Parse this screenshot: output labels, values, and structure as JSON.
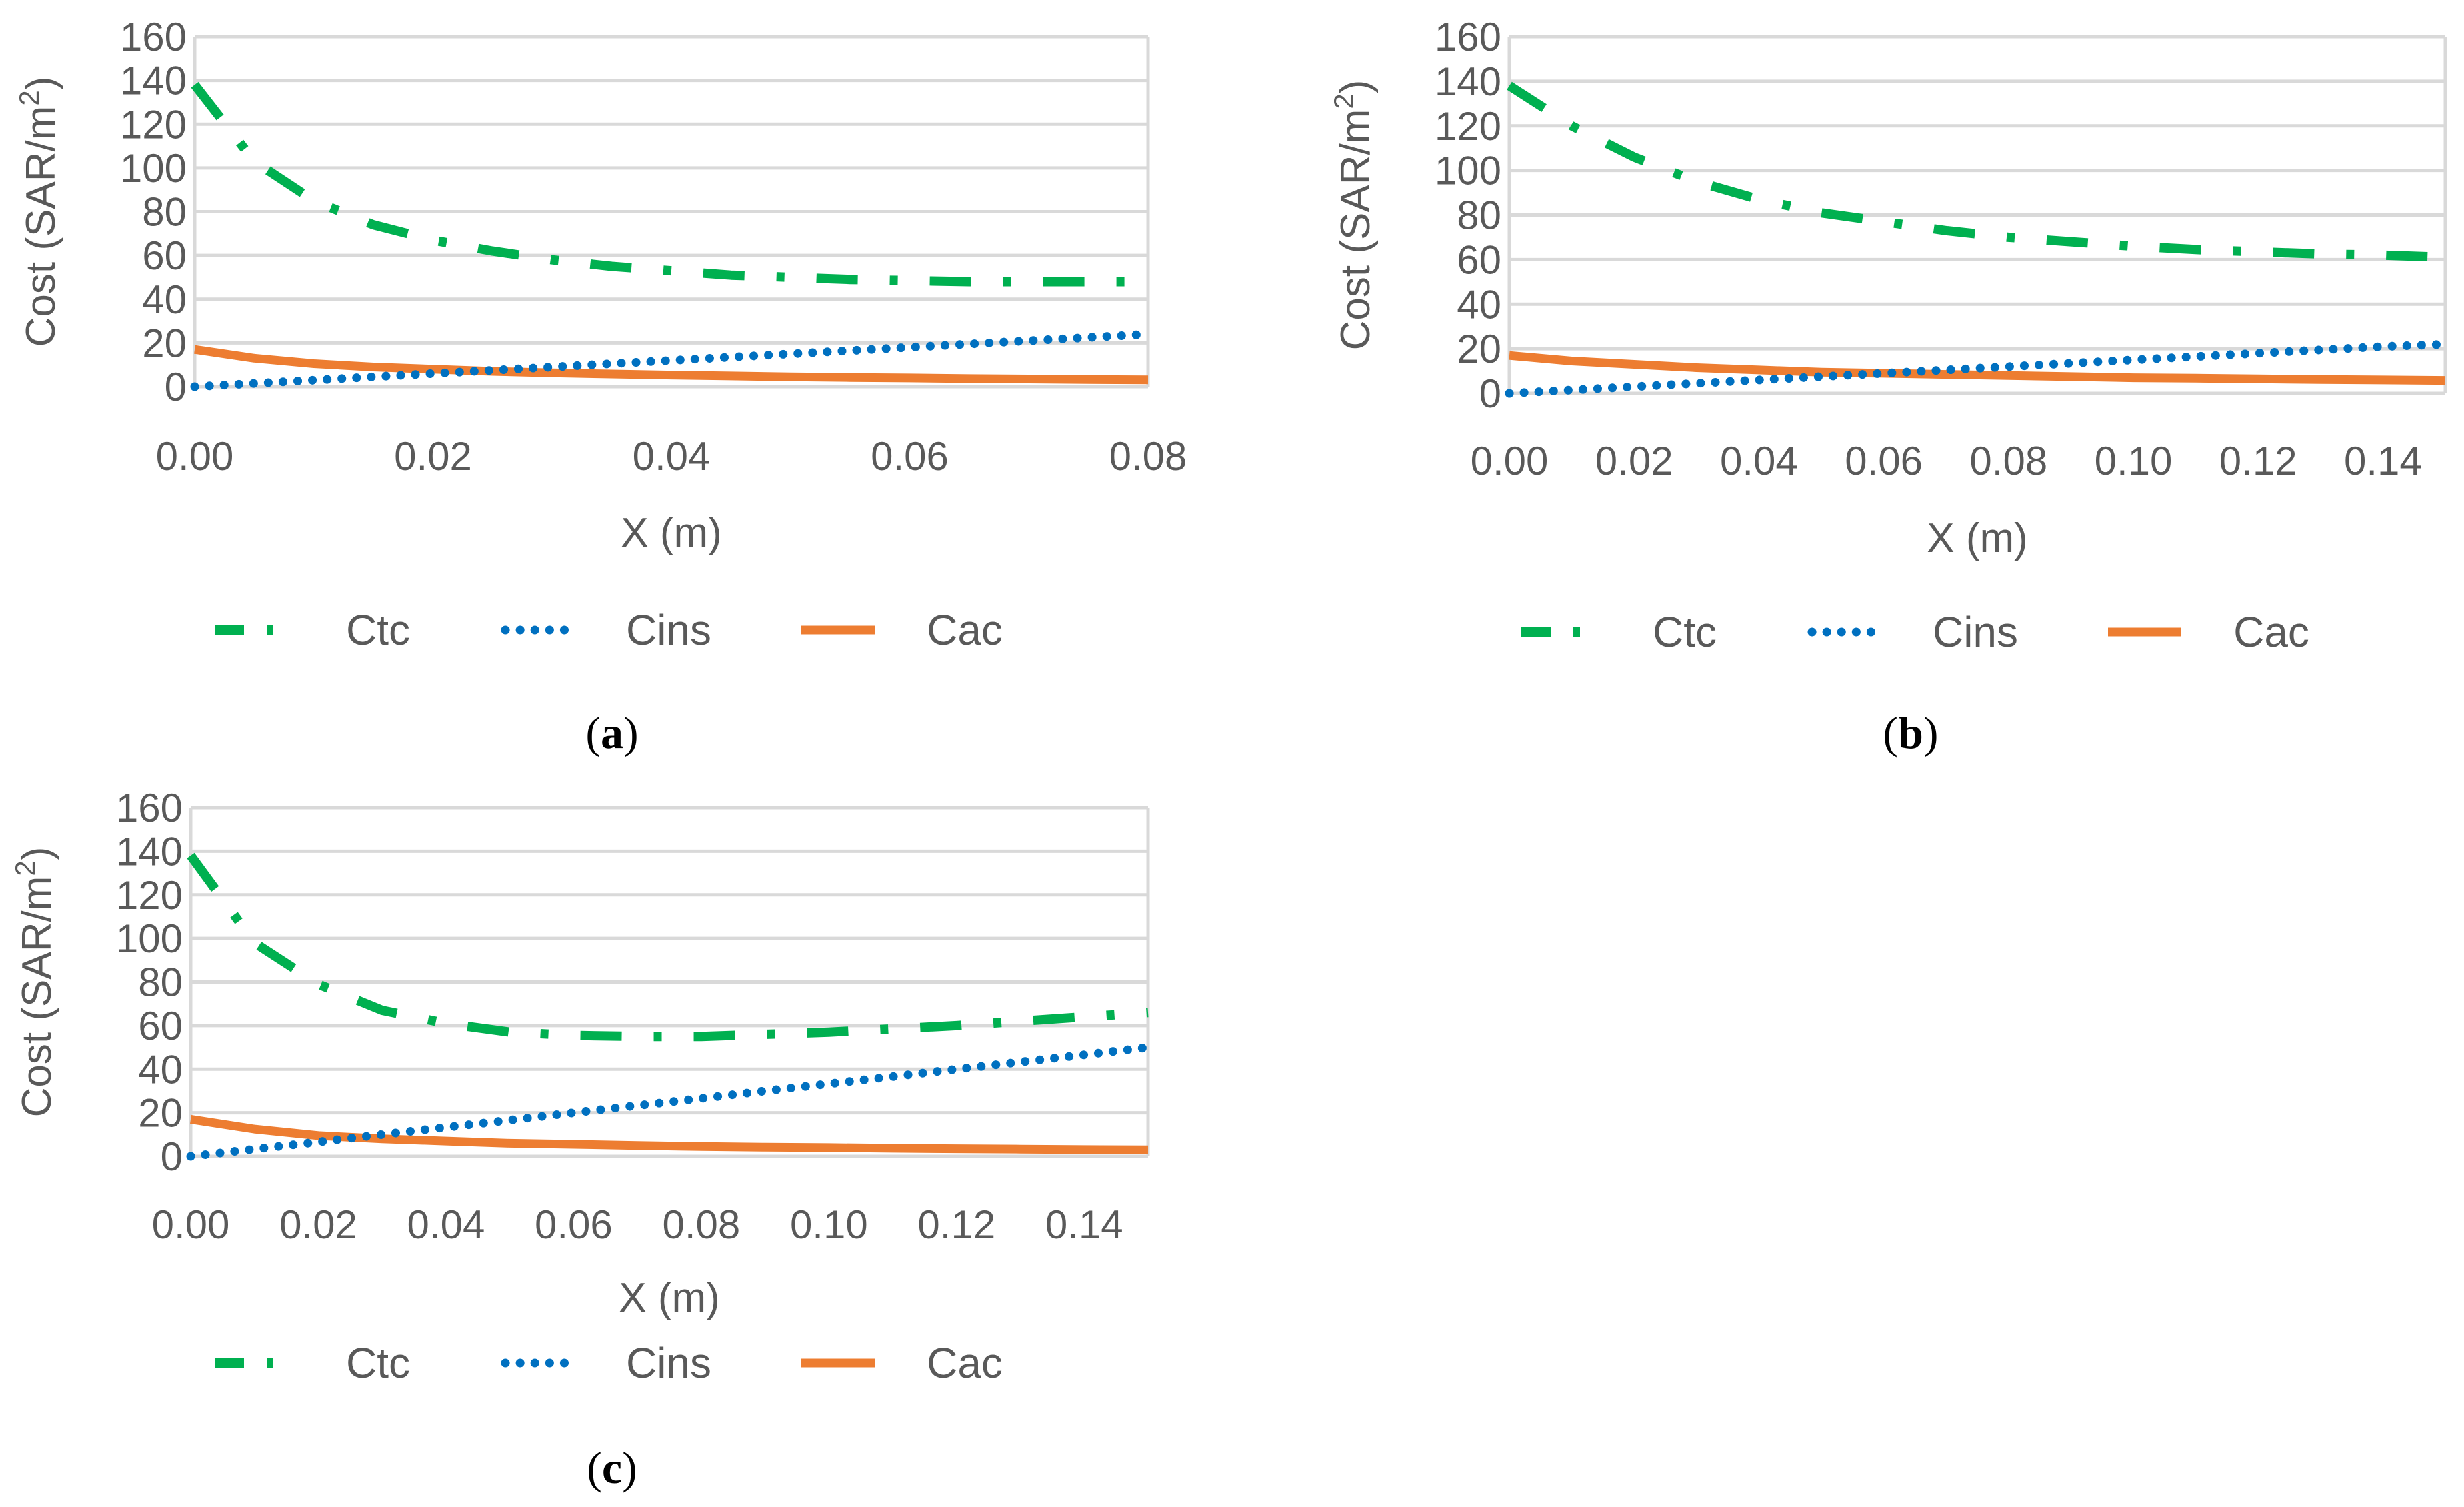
{
  "colors": {
    "ctc": "#00b050",
    "cins": "#0070c0",
    "cac": "#ed7d31",
    "grid": "#d9d9d9",
    "text": "#595959"
  },
  "chart_data": [
    {
      "panel": "(a)",
      "type": "line",
      "title": "",
      "xlabel": "X (m)",
      "ylabel_main": "Cost (SAR/m",
      "ylabel_sup": "2",
      "ylabel_end": ")",
      "xlim": [
        0,
        0.08
      ],
      "ylim": [
        0,
        160
      ],
      "xticks": [
        "0.00",
        "0.02",
        "0.04",
        "0.06",
        "0.08"
      ],
      "yticks": [
        "0",
        "20",
        "40",
        "60",
        "80",
        "100",
        "120",
        "140",
        "160"
      ],
      "legend": [
        "Ctc",
        "Cins",
        "Cac"
      ],
      "legend_position": "bottom",
      "x": [
        0,
        0.005,
        0.01,
        0.015,
        0.02,
        0.025,
        0.03,
        0.035,
        0.04,
        0.045,
        0.05,
        0.055,
        0.06,
        0.065,
        0.07,
        0.075,
        0.08
      ],
      "series": [
        {
          "name": "Ctc",
          "values": [
            138,
            103,
            85,
            74,
            67,
            62,
            58,
            55,
            53,
            51,
            50,
            49,
            48.5,
            48,
            48,
            48,
            48
          ]
        },
        {
          "name": "Cins",
          "values": [
            0,
            1.5,
            3,
            4.5,
            6,
            7.5,
            9,
            10.5,
            12,
            13.5,
            15,
            16.5,
            18,
            19.5,
            21,
            22.5,
            24
          ]
        },
        {
          "name": "Cac",
          "values": [
            17,
            13,
            10.5,
            9,
            8,
            7,
            6.3,
            5.8,
            5.3,
            4.9,
            4.5,
            4.2,
            4.0,
            3.7,
            3.5,
            3.3,
            3.1
          ]
        }
      ]
    },
    {
      "panel": "(b)",
      "type": "line",
      "title": "",
      "xlabel": "X (m)",
      "ylabel_main": "Cost  (SAR/m",
      "ylabel_sup": "2",
      "ylabel_end": ")",
      "xlim": [
        0,
        0.15
      ],
      "ylim": [
        0,
        160
      ],
      "xticks": [
        "0.00",
        "0.02",
        "0.04",
        "0.06",
        "0.08",
        "0.10",
        "0.12",
        "0.14"
      ],
      "yticks": [
        "0",
        "20",
        "40",
        "60",
        "80",
        "100",
        "120",
        "140",
        "160"
      ],
      "legend": [
        "Ctc",
        "Cins",
        "Cac"
      ],
      "legend_position": "bottom",
      "x": [
        0,
        0.01,
        0.02,
        0.03,
        0.04,
        0.05,
        0.06,
        0.07,
        0.08,
        0.09,
        0.1,
        0.11,
        0.12,
        0.13,
        0.14,
        0.15
      ],
      "series": [
        {
          "name": "Ctc",
          "values": [
            138,
            120,
            106,
            95,
            87,
            81,
            77,
            73,
            70,
            68,
            66,
            64.5,
            63.5,
            62.5,
            62,
            61
          ]
        },
        {
          "name": "Cins",
          "values": [
            0,
            1.5,
            3,
            4.5,
            6,
            7.5,
            9,
            10.5,
            12,
            13.5,
            15,
            16.5,
            18,
            19.5,
            21,
            22
          ]
        },
        {
          "name": "Cac",
          "values": [
            17,
            14.5,
            13,
            11.5,
            10.5,
            9.5,
            9,
            8.5,
            8,
            7.5,
            7,
            6.8,
            6.5,
            6.2,
            6,
            5.8
          ]
        }
      ]
    },
    {
      "panel": "(c)",
      "type": "line",
      "title": "",
      "xlabel": "X (m)",
      "ylabel_main": "Cost (SAR/m",
      "ylabel_sup": "2",
      "ylabel_end": ")",
      "xlim": [
        0,
        0.15
      ],
      "ylim": [
        0,
        160
      ],
      "xticks": [
        "0.00",
        "0.02",
        "0.04",
        "0.06",
        "0.08",
        "0.10",
        "0.12",
        "0.14"
      ],
      "yticks": [
        "0",
        "20",
        "40",
        "60",
        "80",
        "100",
        "120",
        "140",
        "160"
      ],
      "legend": [
        "Ctc",
        "Cins",
        "Cac"
      ],
      "legend_position": "bottom",
      "x": [
        0,
        0.01,
        0.02,
        0.03,
        0.04,
        0.05,
        0.06,
        0.07,
        0.08,
        0.09,
        0.1,
        0.11,
        0.12,
        0.13,
        0.14,
        0.15
      ],
      "series": [
        {
          "name": "Ctc",
          "values": [
            138,
            98,
            79,
            67,
            61,
            57,
            55.5,
            55,
            55,
            56,
            57,
            58.5,
            60,
            62,
            64,
            66
          ]
        },
        {
          "name": "Cins",
          "values": [
            0,
            3.3,
            6.6,
            10,
            13.3,
            16.6,
            20,
            23.3,
            26.6,
            30,
            33.3,
            36.6,
            40,
            43.3,
            46.6,
            50
          ]
        },
        {
          "name": "Cac",
          "values": [
            17,
            12.5,
            9.5,
            8,
            7,
            6,
            5.5,
            5,
            4.5,
            4.2,
            4,
            3.7,
            3.5,
            3.3,
            3.1,
            3
          ]
        }
      ]
    }
  ]
}
